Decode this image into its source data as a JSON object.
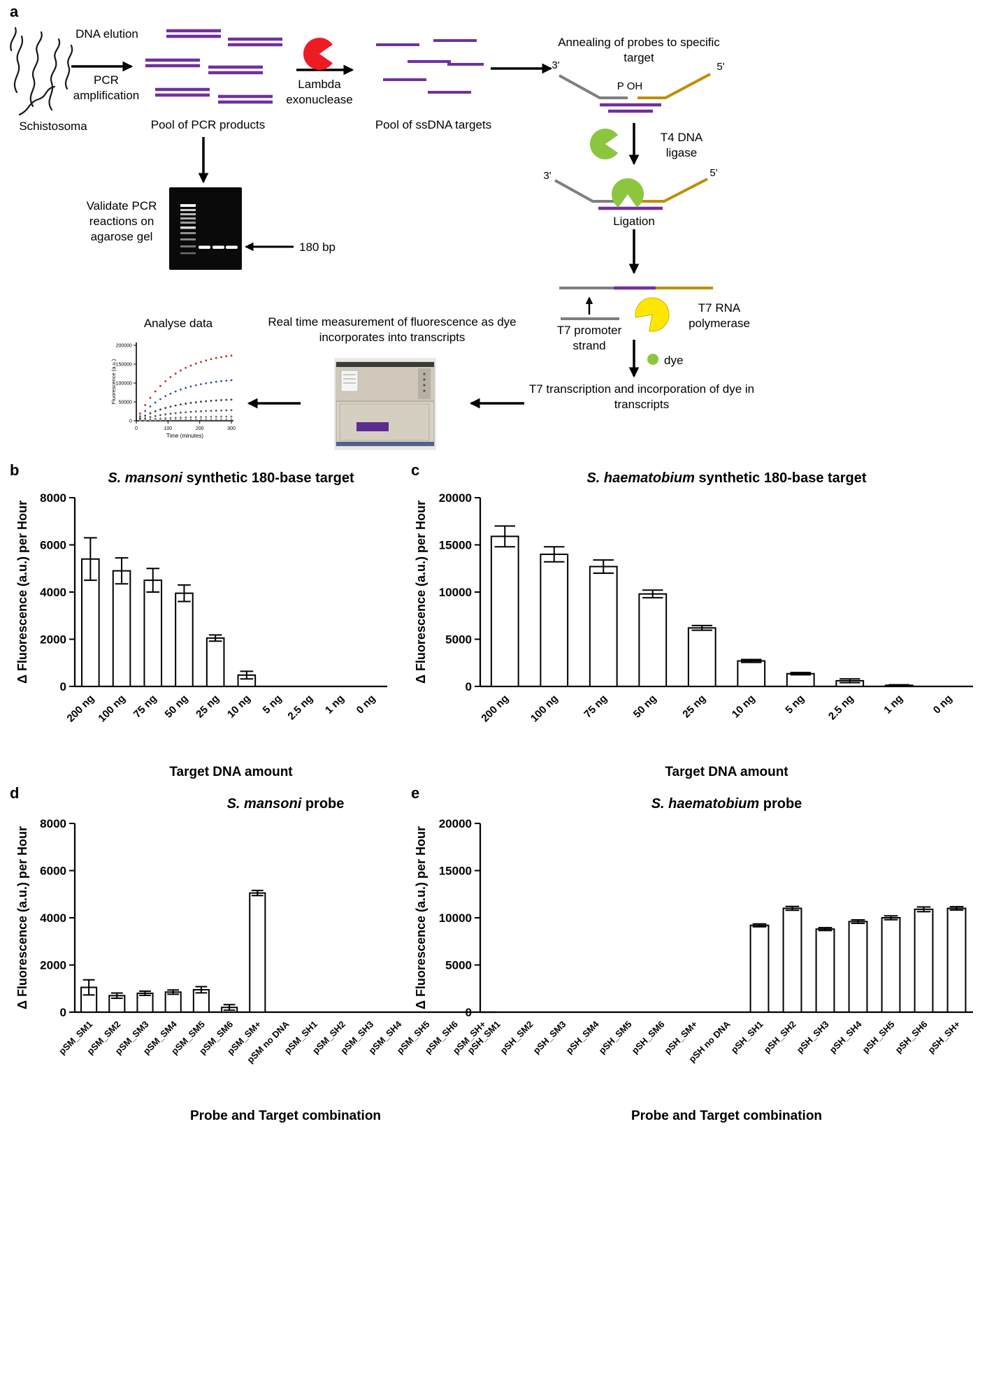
{
  "panel_labels": {
    "a": "a",
    "b": "b",
    "c": "c",
    "d": "d",
    "e": "e"
  },
  "colors": {
    "dna_purple": "#7030a0",
    "exonuclease_red": "#ed1c24",
    "ligase_green": "#8cc63f",
    "polymerase_yellow": "#ffe600",
    "dye_green": "#8cc63f",
    "strand_gray": "#7f7f7f",
    "strand_orange": "#bf8f00"
  },
  "panel_a": {
    "schistosoma": "Schistosoma",
    "dna_elution": "DNA elution",
    "pcr_amplification": "PCR amplification",
    "pool_pcr": "Pool of PCR products",
    "lambda_exonuclease": "Lambda exonuclease",
    "pool_ssdna": "Pool of ssDNA targets",
    "annealing": "Annealing of probes to specific target",
    "three_prime": "3'",
    "five_prime": "5'",
    "p_oh": "P OH",
    "t4_ligase": "T4 DNA ligase",
    "ligation": "Ligation",
    "t7_promoter": "T7 promoter strand",
    "t7_polymerase": "T7 RNA polymerase",
    "dye": "dye",
    "transcription": "T7 transcription and incorporation of dye in transcripts",
    "realtime": "Real time measurement of fluorescence as dye incorporates into transcripts",
    "analyse": "Analyse data",
    "validate_gel": "Validate PCR reactions on agarose gel",
    "band_size": "180 bp"
  },
  "mini_plot": {
    "ylabel": "Fluorescence (a.u.)",
    "xlabel": "Time (minutes)",
    "ylim": [
      0,
      200000
    ],
    "xlim": [
      0,
      300
    ],
    "yticks": [
      0,
      50000,
      100000,
      150000,
      200000
    ],
    "xticks": [
      0,
      100,
      200,
      300
    ],
    "series_plateaus": [
      185000,
      115000,
      60000,
      30000,
      12000,
      4500
    ],
    "series_colors": [
      "#cc2222",
      "#2f5597",
      "#3a3a3a",
      "#555555",
      "#777777",
      "#999999"
    ]
  },
  "chart_data": [
    {
      "type": "bar",
      "id": "b",
      "title": "S. mansoni synthetic 180-base target",
      "title_italic": "S. mansoni",
      "title_rest": " synthetic 180-base target",
      "ylabel": "Δ Fluorescence (a.u.) per Hour",
      "xlabel": "Target DNA amount",
      "ylim": [
        0,
        8000
      ],
      "yticks": [
        0,
        2000,
        4000,
        6000,
        8000
      ],
      "categories": [
        "200 ng",
        "100 ng",
        "75 ng",
        "50 ng",
        "25 ng",
        "10 ng",
        "5 ng",
        "2.5 ng",
        "1 ng",
        "0 ng"
      ],
      "values": [
        5400,
        4900,
        4500,
        3950,
        2050,
        480,
        0,
        0,
        0,
        0
      ],
      "errors": [
        900,
        550,
        500,
        350,
        130,
        160,
        0,
        0,
        0,
        0
      ]
    },
    {
      "type": "bar",
      "id": "c",
      "title": "S. haematobium synthetic 180-base target",
      "title_italic": "S. haematobium",
      "title_rest": " synthetic 180-base target",
      "ylabel": "Δ Fluorescence (a.u.) per Hour",
      "xlabel": "Target DNA amount",
      "ylim": [
        0,
        20000
      ],
      "yticks": [
        0,
        5000,
        10000,
        15000,
        20000
      ],
      "categories": [
        "200 ng",
        "100 ng",
        "75 ng",
        "50 ng",
        "25 ng",
        "10 ng",
        "5 ng",
        "2.5 ng",
        "1 ng",
        "0 ng"
      ],
      "values": [
        15900,
        14000,
        12700,
        9800,
        6200,
        2700,
        1350,
        600,
        120,
        0
      ],
      "errors": [
        1100,
        800,
        700,
        400,
        250,
        150,
        120,
        200,
        60,
        0
      ]
    },
    {
      "type": "bar",
      "id": "d",
      "title": "S. mansoni probe",
      "title_italic": "S. mansoni",
      "title_rest": " probe",
      "ylabel": "Δ Fluorescence (a.u.) per Hour",
      "xlabel": "Probe and Target combination",
      "ylim": [
        0,
        8000
      ],
      "yticks": [
        0,
        2000,
        4000,
        6000,
        8000
      ],
      "categories": [
        "pSM_SM1",
        "pSM_SM2",
        "pSM_SM3",
        "pSM_SM4",
        "pSM_SM5",
        "pSM_SM6",
        "pSM_SM+",
        "pSM no DNA",
        "pSM_SH1",
        "pSM_SH2",
        "pSM_SH3",
        "pSM_SH4",
        "pSM_SH5",
        "pSM_SH6",
        "pSM_SH+"
      ],
      "values": [
        1050,
        700,
        800,
        850,
        950,
        200,
        5050,
        0,
        0,
        0,
        0,
        0,
        0,
        0,
        0
      ],
      "errors": [
        320,
        110,
        90,
        90,
        130,
        120,
        110,
        0,
        0,
        0,
        0,
        0,
        0,
        0,
        0
      ]
    },
    {
      "type": "bar",
      "id": "e",
      "title": "S. haematobium probe",
      "title_italic": "S. haematobium",
      "title_rest": " probe",
      "ylabel": "Δ Fluorescence (a.u.) per Hour",
      "xlabel": "Probe and Target combination",
      "ylim": [
        0,
        20000
      ],
      "yticks": [
        0,
        5000,
        10000,
        15000,
        20000
      ],
      "categories": [
        "pSH_SM1",
        "pSH_SM2",
        "pSH_SM3",
        "pSH_SM4",
        "pSH_SM5",
        "pSH_SM6",
        "pSH_SM+",
        "pSH no DNA",
        "pSH_SH1",
        "pSH_SH2",
        "pSH_SH3",
        "pSH_SH4",
        "pSH_SH5",
        "pSH_SH6",
        "pSH_SH+"
      ],
      "values": [
        0,
        0,
        0,
        0,
        0,
        0,
        0,
        0,
        9200,
        11000,
        8800,
        9600,
        10000,
        10900,
        11000
      ],
      "errors": [
        0,
        0,
        0,
        0,
        0,
        0,
        0,
        0,
        150,
        200,
        150,
        180,
        200,
        250,
        180
      ]
    }
  ]
}
